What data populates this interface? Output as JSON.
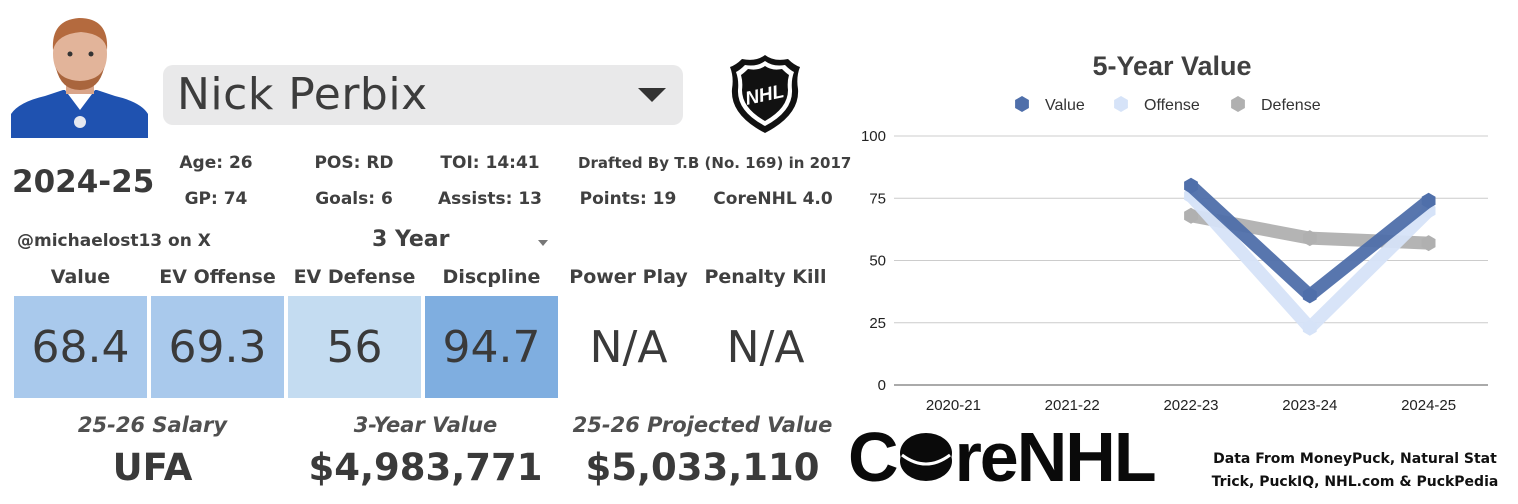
{
  "player": {
    "name": "Nick Perbix",
    "season": "2024-25",
    "drafted": "Drafted By T.B (No. 169) in 2017",
    "version": "CoreNHL 4.0",
    "stats": {
      "age": "Age: 26",
      "pos": "POS: RD",
      "toi": "TOI: 14:41",
      "gp": "GP: 74",
      "goals": "Goals: 6",
      "assists": "Assists: 13",
      "points": "Points: 19"
    }
  },
  "handle": "@michaelost13 on X",
  "window_selector": {
    "value": "3 Year"
  },
  "metrics": [
    {
      "label": "Value",
      "value": "68.4",
      "color": "#a9c9ec"
    },
    {
      "label": "EV Offense",
      "value": "69.3",
      "color": "#a9c9ec"
    },
    {
      "label": "EV Defense",
      "value": "56",
      "color": "#c4dcf1"
    },
    {
      "label": "Discpline",
      "value": "94.7",
      "color": "#7faee0"
    },
    {
      "label": "Power Play",
      "value": "N/A",
      "color": "#ffffff"
    },
    {
      "label": "Penalty Kill",
      "value": "N/A",
      "color": "#ffffff"
    }
  ],
  "footer": {
    "salary_label": "25-26 Salary",
    "salary_value": "UFA",
    "value3_label": "3-Year Value",
    "value3_value": "$4,983,771",
    "proj_label": "25-26 Projected Value",
    "proj_value": "$5,033,110"
  },
  "brand": {
    "prefix": "C",
    "suffix": "reNHL"
  },
  "source": "Data From MoneyPuck, Natural Stat Trick, PuckIQ, NHL.com & PuckPedia",
  "icons": {
    "dropdown": "caret-down-icon",
    "league": "nhl-shield-logo",
    "brand": "puck-icon"
  },
  "chart_data": {
    "type": "line",
    "title": "5-Year Value",
    "categories": [
      "2020-21",
      "2021-22",
      "2022-23",
      "2023-24",
      "2024-25"
    ],
    "ylim": [
      0,
      100
    ],
    "yticks": [
      0,
      25,
      50,
      75,
      100
    ],
    "legend_position": "top",
    "series": [
      {
        "name": "Defense",
        "color": "#b0b0b0",
        "values": [
          null,
          null,
          68,
          59,
          57
        ]
      },
      {
        "name": "Offense",
        "color": "#d6e3f8",
        "values": [
          null,
          null,
          76,
          23,
          70
        ]
      },
      {
        "name": "Value",
        "color": "#4f6faa",
        "values": [
          null,
          null,
          80,
          36,
          74
        ]
      }
    ],
    "legend_order": [
      "Value",
      "Offense",
      "Defense"
    ]
  }
}
